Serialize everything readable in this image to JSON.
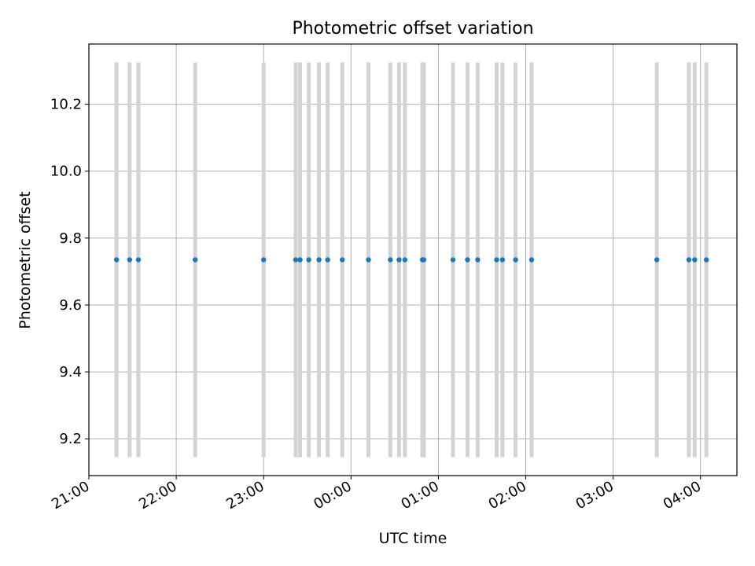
{
  "chart_data": {
    "type": "scatter",
    "title": "Photometric offset variation",
    "xlabel": "UTC time",
    "ylabel": "Photometric offset",
    "grid": true,
    "x_ticks": [
      "21:00",
      "22:00",
      "23:00",
      "00:00",
      "01:00",
      "02:00",
      "03:00",
      "04:00"
    ],
    "y_ticks": [
      "9.2",
      "9.4",
      "9.6",
      "9.8",
      "10.0",
      "10.2"
    ],
    "xlim": [
      "21:00",
      "04:25"
    ],
    "ylim": [
      9.09,
      10.38
    ],
    "colors": {
      "points": "#1f77b4",
      "error_bars": "#d3d3d3",
      "grid": "#b0b0b0"
    },
    "series": [
      {
        "x": [
          "21:19",
          "21:28",
          "21:34",
          "22:13",
          "23:00",
          "23:22",
          "23:25",
          "23:31",
          "23:38",
          "23:44",
          "23:54",
          "00:12",
          "00:27",
          "00:33",
          "00:37",
          "00:49",
          "00:50",
          "01:10",
          "01:20",
          "01:27",
          "01:40",
          "01:44",
          "01:53",
          "02:04",
          "03:30",
          "03:52",
          "03:56",
          "04:04"
        ],
        "y": [
          9.735,
          9.735,
          9.735,
          9.735,
          9.735,
          9.735,
          9.735,
          9.735,
          9.735,
          9.735,
          9.735,
          9.735,
          9.735,
          9.735,
          9.735,
          9.735,
          9.735,
          9.735,
          9.735,
          9.735,
          9.735,
          9.735,
          9.735,
          9.735,
          9.735,
          9.735,
          9.735,
          9.735
        ],
        "y_err_low": [
          9.145,
          9.145,
          9.145,
          9.145,
          9.145,
          9.145,
          9.145,
          9.145,
          9.145,
          9.145,
          9.145,
          9.145,
          9.145,
          9.145,
          9.145,
          9.145,
          9.145,
          9.145,
          9.145,
          9.145,
          9.145,
          9.145,
          9.145,
          9.145,
          9.145,
          9.145,
          9.145,
          9.145
        ],
        "y_err_high": [
          10.325,
          10.325,
          10.325,
          10.325,
          10.325,
          10.325,
          10.325,
          10.325,
          10.325,
          10.325,
          10.325,
          10.325,
          10.325,
          10.325,
          10.325,
          10.325,
          10.325,
          10.325,
          10.325,
          10.325,
          10.325,
          10.325,
          10.325,
          10.325,
          10.325,
          10.325,
          10.325,
          10.325
        ]
      }
    ]
  }
}
